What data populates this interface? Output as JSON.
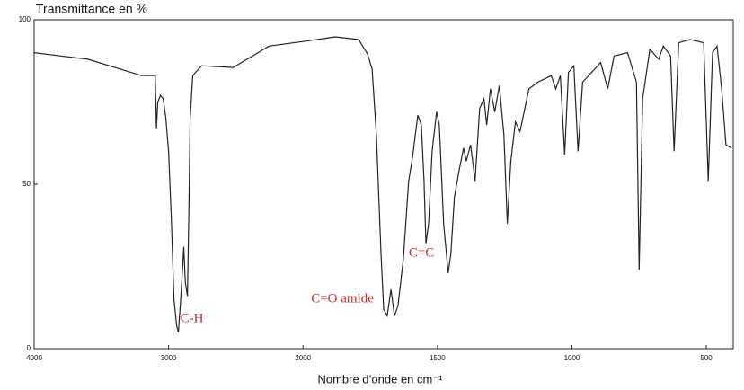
{
  "chart_data": {
    "type": "line",
    "title": "Transmittance en %",
    "x_label": "Nombre d’onde en cm⁻¹",
    "xlim": [
      4000,
      400
    ],
    "x_scale_change": {
      "at": 2000,
      "factor": 2
    },
    "xticks": [
      4000,
      3000,
      2000,
      1500,
      1000,
      500
    ],
    "ylim": [
      0,
      100
    ],
    "yticks": [
      0,
      50,
      100
    ],
    "color": "#222222",
    "series": [
      {
        "name": "Spectre IR",
        "x": [
          4000,
          3800,
          3600,
          3400,
          3200,
          3100,
          3090,
          3080,
          3060,
          3040,
          3020,
          3000,
          2980,
          2960,
          2940,
          2927,
          2910,
          2895,
          2887,
          2875,
          2860,
          2850,
          2840,
          2820,
          2800,
          2753,
          2520,
          2253,
          2000,
          1880,
          1793,
          1760,
          1743,
          1727,
          1710,
          1700,
          1687,
          1673,
          1660,
          1647,
          1627,
          1607,
          1593,
          1573,
          1560,
          1550,
          1543,
          1533,
          1520,
          1503,
          1493,
          1477,
          1460,
          1450,
          1437,
          1420,
          1403,
          1393,
          1377,
          1360,
          1343,
          1327,
          1317,
          1303,
          1287,
          1270,
          1253,
          1240,
          1227,
          1210,
          1193,
          1160,
          1127,
          1077,
          1060,
          1043,
          1027,
          1013,
          993,
          977,
          960,
          927,
          893,
          867,
          843,
          793,
          760,
          750,
          737,
          710,
          677,
          660,
          633,
          620,
          603,
          560,
          510,
          493,
          477,
          460,
          443,
          427,
          407
        ],
        "values": [
          90,
          89,
          88,
          85.5,
          83,
          83,
          67,
          75,
          77,
          76,
          70,
          60,
          40,
          15,
          7,
          5,
          15,
          25,
          31,
          20,
          16,
          40,
          70,
          83,
          84,
          86,
          85.5,
          92,
          93.4,
          94.8,
          94,
          89.6,
          85,
          65,
          29,
          12,
          10,
          18,
          10,
          13,
          27,
          51,
          58,
          71,
          68,
          51,
          32,
          38,
          60,
          72,
          68,
          38,
          23,
          29,
          46,
          54,
          61,
          57,
          62,
          51,
          73,
          76,
          68,
          79,
          72,
          80,
          65,
          38,
          57,
          69,
          66,
          79,
          81,
          83,
          79,
          83,
          59,
          84,
          86,
          60,
          81,
          84,
          87,
          79,
          89,
          90,
          81,
          24,
          76,
          91,
          88,
          92,
          89,
          60,
          93,
          94,
          93,
          51,
          90,
          92,
          79,
          62,
          61
        ]
      }
    ],
    "annotations": [
      {
        "text": "C-H",
        "x": 2913,
        "y": 9
      },
      {
        "text": "C=O amide",
        "x": 1970,
        "y": 15
      },
      {
        "text": "C=C",
        "x": 1607,
        "y": 29
      }
    ]
  }
}
